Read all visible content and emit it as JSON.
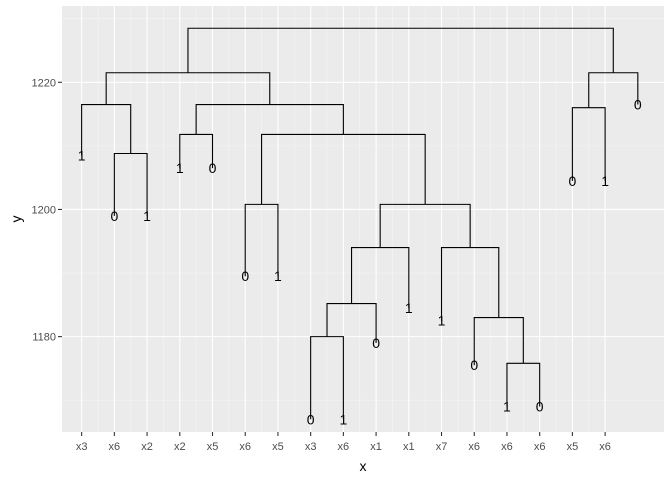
{
  "chart_data": {
    "type": "dendrogram",
    "xlabel": "x",
    "ylabel": "y",
    "ylim": [
      1165,
      1232
    ],
    "xlim": [
      0.4,
      18.8
    ],
    "y_ticks": [
      1180,
      1200,
      1220
    ],
    "x_tick_labels": [
      "x3",
      "x6",
      "x2",
      "x2",
      "x5",
      "x6",
      "x5",
      "x3",
      "x6",
      "x1",
      "x1",
      "x7",
      "x6",
      "x6",
      "x6",
      "x5",
      "x6"
    ],
    "leaf_labels": [
      {
        "x": 1,
        "y": 1208.5,
        "label": "1"
      },
      {
        "x": 2,
        "y": 1199,
        "label": "0"
      },
      {
        "x": 3,
        "y": 1199,
        "label": "1"
      },
      {
        "x": 4,
        "y": 1206.5,
        "label": "1"
      },
      {
        "x": 5,
        "y": 1206.5,
        "label": "0"
      },
      {
        "x": 6,
        "y": 1189.5,
        "label": "0"
      },
      {
        "x": 7,
        "y": 1189.5,
        "label": "1"
      },
      {
        "x": 8,
        "y": 1167,
        "label": "0"
      },
      {
        "x": 9,
        "y": 1167,
        "label": "1"
      },
      {
        "x": 10,
        "y": 1179,
        "label": "0"
      },
      {
        "x": 11,
        "y": 1184.5,
        "label": "1"
      },
      {
        "x": 12,
        "y": 1182.5,
        "label": "1"
      },
      {
        "x": 13,
        "y": 1175.5,
        "label": "0"
      },
      {
        "x": 14,
        "y": 1169,
        "label": "1"
      },
      {
        "x": 15,
        "y": 1169,
        "label": "0"
      },
      {
        "x": 16,
        "y": 1204.5,
        "label": "0"
      },
      {
        "x": 17,
        "y": 1204.5,
        "label": "1"
      },
      {
        "x": 18,
        "y": 1216.5,
        "label": "0"
      }
    ],
    "merges": [
      {
        "left_x": 8,
        "left_y": 1167,
        "right_x": 9,
        "right_y": 1167,
        "height": 1180
      },
      {
        "left_x": 14,
        "left_y": 1169,
        "right_x": 15,
        "right_y": 1169,
        "height": 1175.8
      },
      {
        "left_x": 8.5,
        "left_y": 1180,
        "right_x": 10,
        "right_y": 1179,
        "height": 1185.2
      },
      {
        "left_x": 13,
        "left_y": 1175.5,
        "right_x": 14.5,
        "right_y": 1175.8,
        "height": 1183
      },
      {
        "left_x": 9.25,
        "left_y": 1185.2,
        "right_x": 11,
        "right_y": 1184.5,
        "height": 1194
      },
      {
        "left_x": 12,
        "left_y": 1182.5,
        "right_x": 13.75,
        "right_y": 1183,
        "height": 1194
      },
      {
        "left_x": 10.125,
        "left_y": 1194,
        "right_x": 12.875,
        "right_y": 1194,
        "height": 1200.8
      },
      {
        "left_x": 6,
        "left_y": 1189.5,
        "right_x": 7,
        "right_y": 1189.5,
        "height": 1200.8
      },
      {
        "left_x": 6.5,
        "left_y": 1200.8,
        "right_x": 11.5,
        "right_y": 1200.8,
        "height": 1211.8
      },
      {
        "left_x": 4,
        "left_y": 1206.5,
        "right_x": 5,
        "right_y": 1206.5,
        "height": 1211.8
      },
      {
        "left_x": 4.5,
        "left_y": 1211.8,
        "right_x": 9,
        "right_y": 1211.8,
        "height": 1216.5
      },
      {
        "left_x": 2,
        "left_y": 1199,
        "right_x": 3,
        "right_y": 1199,
        "height": 1208.8
      },
      {
        "left_x": 1,
        "left_y": 1208.5,
        "right_x": 2.5,
        "right_y": 1208.8,
        "height": 1216.5
      },
      {
        "left_x": 1.75,
        "left_y": 1216.5,
        "right_x": 6.75,
        "right_y": 1216.5,
        "height": 1221.5
      },
      {
        "left_x": 16,
        "left_y": 1204.5,
        "right_x": 17,
        "right_y": 1204.5,
        "height": 1216
      },
      {
        "left_x": 16.5,
        "left_y": 1216,
        "right_x": 18,
        "right_y": 1216.5,
        "height": 1221.5
      },
      {
        "left_x": 4.25,
        "left_y": 1221.5,
        "right_x": 17.25,
        "right_y": 1221.5,
        "height": 1228.5
      }
    ],
    "grid": true
  }
}
